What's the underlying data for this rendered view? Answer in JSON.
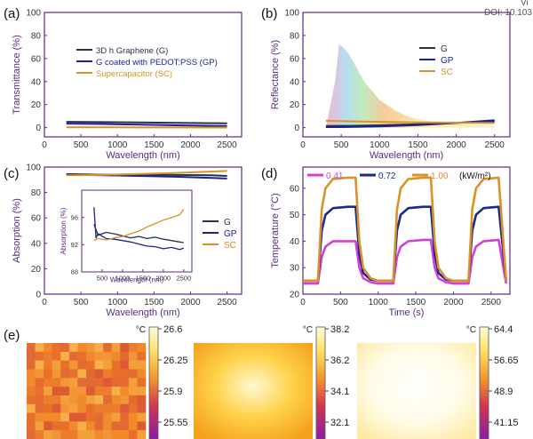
{
  "header": {
    "doi_tail": "Vi",
    "doi": "DOI: 10.103"
  },
  "colors": {
    "axis": "#5b2a82",
    "tick_text": "#333333",
    "G": "#2a2f4a",
    "GP": "#1c238f",
    "SC": "#d9912a",
    "p041": "#d63fd6",
    "p072": "#1a2a8c",
    "p100": "#d9912a"
  },
  "chart_data": [
    {
      "panel": "(a)",
      "type": "line",
      "xlabel": "Wavelength (nm)",
      "ylabel": "Transmittance (%)",
      "xlim": [
        0,
        2700
      ],
      "ylim": [
        -8,
        100
      ],
      "xticks": [
        "0",
        "500",
        "1000",
        "1500",
        "2000",
        "2500"
      ],
      "yticks": [
        "0",
        "20",
        "40",
        "60",
        "80",
        "100"
      ],
      "legend_position": "upper-left",
      "series": [
        {
          "name": "3D h Graphene (G)",
          "color": "#2a2f4a",
          "x": [
            300,
            800,
            1300,
            1800,
            2300,
            2500
          ],
          "y": [
            5.0,
            4.8,
            4.6,
            4.2,
            3.9,
            3.8
          ]
        },
        {
          "name": "G coated with PEDOT:PSS (GP)",
          "color": "#1c238f",
          "x": [
            300,
            800,
            1300,
            1800,
            2300,
            2500
          ],
          "y": [
            3.5,
            3.2,
            2.6,
            2.0,
            1.6,
            1.5
          ]
        },
        {
          "name": "Supercapacitor (SC)",
          "color": "#d9912a",
          "x": [
            300,
            800,
            1300,
            1800,
            2300,
            2500
          ],
          "y": [
            0.3,
            0.3,
            0.2,
            0.2,
            0.1,
            0.1
          ]
        }
      ]
    },
    {
      "panel": "(b)",
      "type": "line",
      "xlabel": "Wavelength (nm)",
      "ylabel": "Reflectance (%)",
      "xlim": [
        0,
        2700
      ],
      "ylim": [
        -8,
        100
      ],
      "xticks": [
        "0",
        "500",
        "1000",
        "1500",
        "2000",
        "2500"
      ],
      "yticks": [
        "0",
        "20",
        "40",
        "60",
        "80",
        "100"
      ],
      "legend_position": "right",
      "series": [
        {
          "name": "G",
          "color": "#2a2f4a",
          "x": [
            300,
            600,
            1000,
            1500,
            2000,
            2500
          ],
          "y": [
            1.5,
            1.6,
            2.0,
            3.0,
            4.2,
            5.5
          ]
        },
        {
          "name": "GP",
          "color": "#1c238f",
          "x": [
            300,
            600,
            1000,
            1500,
            2000,
            2500
          ],
          "y": [
            0.5,
            0.6,
            1.0,
            2.2,
            4.0,
            6.5
          ]
        },
        {
          "name": "SC",
          "color": "#d9912a",
          "x": [
            300,
            600,
            1000,
            1500,
            2000,
            2500
          ],
          "y": [
            6.0,
            5.5,
            5.0,
            4.6,
            4.3,
            4.0
          ]
        }
      ],
      "spectrum_curve": {
        "x": [
          300,
          420,
          470,
          520,
          600,
          700,
          800,
          1000,
          1200,
          1400,
          1600,
          1800,
          2000,
          2200,
          2500
        ],
        "y": [
          0,
          40,
          72,
          70,
          64,
          52,
          40,
          24,
          15,
          9,
          6,
          4.5,
          3.5,
          2.8,
          2.0
        ]
      }
    },
    {
      "panel": "(c)",
      "type": "line",
      "xlabel": "Wavelength (nm)",
      "ylabel": "Absorption (%)",
      "xlim": [
        0,
        2700
      ],
      "ylim": [
        0,
        100
      ],
      "xticks": [
        "0",
        "500",
        "1000",
        "1500",
        "2000",
        "2500"
      ],
      "yticks": [
        "0",
        "20",
        "40",
        "60",
        "80",
        "100"
      ],
      "legend_position": "right",
      "series": [
        {
          "name": "G",
          "color": "#2a2f4a",
          "x": [
            300,
            800,
            1300,
            1800,
            2300,
            2500
          ],
          "y": [
            94.5,
            94.0,
            94.2,
            93.8,
            93.5,
            93.0
          ]
        },
        {
          "name": "GP",
          "color": "#1c238f",
          "x": [
            300,
            800,
            1300,
            1800,
            2300,
            2500
          ],
          "y": [
            94.0,
            93.6,
            93.0,
            92.4,
            91.5,
            91.0
          ]
        },
        {
          "name": "SC",
          "color": "#d9912a",
          "x": [
            300,
            800,
            1300,
            1800,
            2300,
            2500
          ],
          "y": [
            93.5,
            93.8,
            94.6,
            95.4,
            96.5,
            97.0
          ]
        }
      ],
      "inset": {
        "xlabel": "Wavelength (nm)",
        "ylabel": "Absorption (%)",
        "xlim": [
          0,
          2700
        ],
        "ylim": [
          88,
          100
        ],
        "xticks": [
          "500",
          "1000",
          "1500",
          "2000",
          "2500"
        ],
        "yticks": [
          "88",
          "92",
          "96"
        ],
        "series": [
          {
            "name": "G",
            "color": "#2a2f4a",
            "x": [
              300,
              400,
              600,
              800,
              1000,
              1200,
              1400,
              1600,
              1800,
              2000,
              2200,
              2400,
              2500
            ],
            "y": [
              95,
              93.4,
              93.8,
              93.6,
              93.3,
              93.0,
              93.2,
              92.9,
              93.1,
              92.8,
              92.6,
              92.4,
              92.3
            ]
          },
          {
            "name": "GP",
            "color": "#1c238f",
            "x": [
              300,
              350,
              400,
              600,
              800,
              1000,
              1200,
              1400,
              1600,
              1800,
              2000,
              2200,
              2400,
              2500
            ],
            "y": [
              97.5,
              93.0,
              93.6,
              92.9,
              92.8,
              92.6,
              92.4,
              92.1,
              91.8,
              91.7,
              91.4,
              91.6,
              91.3,
              91.5
            ]
          },
          {
            "name": "SC",
            "color": "#d9912a",
            "x": [
              300,
              400,
              600,
              800,
              1000,
              1200,
              1400,
              1600,
              1800,
              2000,
              2200,
              2400,
              2500
            ],
            "y": [
              92.6,
              92.9,
              92.7,
              93.0,
              93.2,
              93.6,
              94.0,
              94.6,
              95.1,
              95.6,
              96.0,
              96.4,
              97.2
            ]
          }
        ]
      }
    },
    {
      "panel": "(d)",
      "type": "line",
      "xlabel": "Time (s)",
      "ylabel": "Temperature (°C)",
      "xlim": [
        0,
        2750
      ],
      "ylim": [
        20,
        68
      ],
      "xticks": [
        "0",
        "500",
        "1000",
        "1500",
        "2000",
        "2500"
      ],
      "yticks": [
        "20",
        "30",
        "40",
        "50",
        "60"
      ],
      "legend_position": "top",
      "legend_unit": "(kW/m²)",
      "series": [
        {
          "name": "0.41",
          "color": "#d63fd6",
          "x": [
            0,
            200,
            250,
            300,
            400,
            600,
            700,
            750,
            800,
            900,
            1000,
            1200,
            1250,
            1300,
            1400,
            1600,
            1700,
            1750,
            1800,
            1900,
            2000,
            2200,
            2250,
            2300,
            2400,
            2600,
            2700
          ],
          "y": [
            24,
            24,
            34,
            38,
            40,
            40,
            40,
            30,
            26,
            24.5,
            24,
            24,
            34,
            38,
            40,
            40.5,
            40.5,
            30,
            26,
            24.5,
            24,
            24,
            34,
            38,
            40,
            40.5,
            24
          ]
        },
        {
          "name": "0.72",
          "color": "#1a2a8c",
          "x": [
            0,
            200,
            250,
            300,
            400,
            600,
            700,
            750,
            800,
            900,
            1000,
            1200,
            1250,
            1300,
            1400,
            1600,
            1700,
            1750,
            1800,
            1900,
            2000,
            2200,
            2250,
            2300,
            2400,
            2600,
            2700
          ],
          "y": [
            25,
            25,
            44,
            50,
            52.5,
            53,
            53,
            35,
            28,
            25.5,
            25,
            25,
            44,
            50,
            52.5,
            53,
            53,
            35,
            28,
            25.5,
            25,
            25,
            44,
            50,
            52.5,
            53,
            25
          ]
        },
        {
          "name": "1.00",
          "color": "#d9912a",
          "x": [
            0,
            200,
            250,
            300,
            400,
            600,
            700,
            750,
            800,
            900,
            1000,
            1200,
            1250,
            1300,
            1400,
            1600,
            1700,
            1750,
            1800,
            1900,
            2000,
            2200,
            2250,
            2300,
            2400,
            2600,
            2700
          ],
          "y": [
            25,
            25,
            52,
            60,
            63.5,
            64,
            64,
            40,
            30,
            26,
            25,
            25,
            52,
            60,
            63.5,
            64,
            64,
            40,
            30,
            26,
            25,
            25,
            52,
            60,
            63.5,
            64,
            25
          ]
        }
      ]
    },
    {
      "panel": "(e)",
      "type": "heatmap",
      "maps": [
        {
          "unit": "°C",
          "ticks": [
            "26.6",
            "26.25",
            "25.9",
            "25.55"
          ],
          "palette": "warm-low"
        },
        {
          "unit": "°C",
          "ticks": [
            "38.2",
            "36.2",
            "34.1",
            "32.1"
          ],
          "palette": "warm-mid"
        },
        {
          "unit": "°C",
          "ticks": [
            "64.4",
            "56.65",
            "48.9",
            "41.15"
          ],
          "palette": "warm-high"
        }
      ]
    }
  ]
}
